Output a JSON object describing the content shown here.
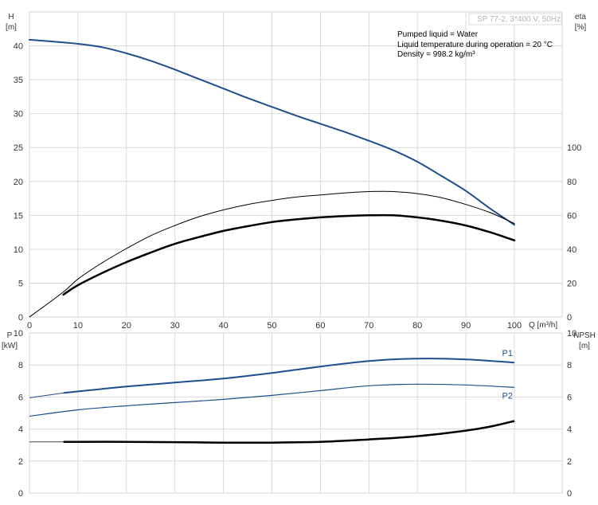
{
  "chart_data": [
    {
      "type": "line",
      "panel": "upper",
      "title": "SP 77-2, 3*400 V, 50Hz",
      "left_axis": {
        "label": "H",
        "unit": "[m]",
        "range": [
          0,
          45
        ],
        "ticks": [
          0,
          5,
          10,
          15,
          20,
          25,
          30,
          35,
          40
        ]
      },
      "right_axis": {
        "label": "eta",
        "unit": "[%]",
        "range": [
          0,
          180
        ],
        "ticks": [
          0,
          20,
          40,
          60,
          80,
          100
        ]
      },
      "x_axis": {
        "label": "Q [m³/h]",
        "range": [
          0,
          100
        ],
        "ticks": [
          0,
          10,
          20,
          30,
          40,
          50,
          60,
          70,
          80,
          90,
          100
        ]
      },
      "grid": true,
      "notes": [
        "Pumped liquid = Water",
        "Liquid temperature during operation = 20 °C",
        "Density = 998.2 kg/m³"
      ],
      "series": [
        {
          "axis": "left",
          "color": "#1f4e8c",
          "width": 2,
          "x": [
            0,
            7,
            10,
            15,
            20,
            25,
            30,
            35,
            40,
            45,
            50,
            55,
            60,
            65,
            70,
            75,
            80,
            85,
            90,
            95,
            100
          ],
          "y": [
            40.9,
            40.5,
            40.3,
            39.8,
            38.9,
            37.8,
            36.5,
            35.1,
            33.7,
            32.3,
            31.0,
            29.7,
            28.5,
            27.3,
            26.0,
            24.6,
            22.9,
            20.8,
            18.6,
            16.0,
            13.6
          ]
        },
        {
          "axis": "left",
          "color": "#000000",
          "width": 1,
          "x": [
            0,
            7,
            10,
            15,
            20,
            25,
            30,
            35,
            40,
            45,
            50,
            55,
            60,
            65,
            70,
            75,
            80,
            85,
            90,
            95,
            100
          ],
          "y": [
            0,
            3.7,
            5.6,
            8.0,
            10.1,
            12.0,
            13.5,
            14.8,
            15.8,
            16.6,
            17.2,
            17.7,
            18.0,
            18.3,
            18.5,
            18.5,
            18.2,
            17.6,
            16.6,
            15.4,
            13.8
          ]
        },
        {
          "axis": "left",
          "color": "#000000",
          "width": 2.5,
          "x": [
            7,
            10,
            15,
            20,
            25,
            30,
            35,
            40,
            45,
            50,
            55,
            60,
            65,
            70,
            75,
            80,
            85,
            90,
            95,
            100
          ],
          "y": [
            3.3,
            4.7,
            6.5,
            8.1,
            9.5,
            10.8,
            11.8,
            12.7,
            13.4,
            14.0,
            14.4,
            14.7,
            14.9,
            15.0,
            15.0,
            14.7,
            14.2,
            13.5,
            12.5,
            11.3
          ]
        }
      ]
    },
    {
      "type": "line",
      "panel": "lower",
      "left_axis": {
        "label": "P",
        "unit": "[kW]",
        "range": [
          0,
          10
        ],
        "ticks": [
          0,
          2,
          4,
          6,
          8,
          10
        ]
      },
      "right_axis": {
        "label": "NPSH",
        "unit": "[m]",
        "range": [
          0,
          10
        ],
        "ticks": [
          0,
          2,
          4,
          6,
          8,
          10
        ]
      },
      "x_axis": {
        "range": [
          0,
          100
        ]
      },
      "grid": true,
      "series": [
        {
          "name": "P1",
          "axis": "left",
          "color": "#1f4e8c",
          "width": 2,
          "dashed_from": 7,
          "x": [
            0,
            7,
            10,
            20,
            30,
            40,
            50,
            60,
            70,
            80,
            90,
            100
          ],
          "y": [
            5.95,
            6.25,
            6.35,
            6.65,
            6.9,
            7.15,
            7.5,
            7.9,
            8.25,
            8.4,
            8.35,
            8.15
          ]
        },
        {
          "name": "P2",
          "axis": "left",
          "color": "#1f4e8c",
          "width": 1.2,
          "x": [
            0,
            10,
            20,
            30,
            40,
            50,
            60,
            70,
            80,
            90,
            100
          ],
          "y": [
            4.8,
            5.2,
            5.45,
            5.65,
            5.85,
            6.1,
            6.4,
            6.7,
            6.8,
            6.75,
            6.6
          ]
        },
        {
          "axis": "right",
          "color": "#000000",
          "width": 2.5,
          "dashed_until": 7,
          "x": [
            0,
            7,
            10,
            20,
            30,
            40,
            50,
            60,
            70,
            80,
            90,
            95,
            100
          ],
          "y": [
            3.2,
            3.2,
            3.2,
            3.2,
            3.18,
            3.15,
            3.15,
            3.2,
            3.35,
            3.55,
            3.9,
            4.15,
            4.5
          ]
        }
      ]
    }
  ]
}
